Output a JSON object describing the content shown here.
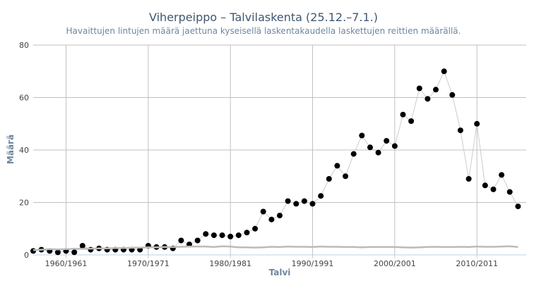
{
  "chart_data": {
    "type": "line",
    "title": "Viherpeippo – Talvilaskenta (25.12.–7.1.)",
    "subtitle": "Havaittujen lintujen määrä jaettuna kyseisellä laskentakaudella laskettujen reittien määrällä.",
    "xlabel": "Talvi",
    "ylabel": "Määrä",
    "ylim": [
      0,
      80
    ],
    "yticks": [
      "0",
      "20",
      "40",
      "60",
      "80"
    ],
    "xlim": [
      1956,
      2016
    ],
    "xticks": [
      {
        "x": 1960,
        "label": "1960/1961"
      },
      {
        "x": 1970,
        "label": "1970/1971"
      },
      {
        "x": 1980,
        "label": "1980/1981"
      },
      {
        "x": 1990,
        "label": "1990/1991"
      },
      {
        "x": 2000,
        "label": "2000/2001"
      },
      {
        "x": 2010,
        "label": "2010/2011"
      }
    ],
    "grid": true,
    "legend": "none",
    "series": [
      {
        "color": "#000000",
        "line_color": "#cccccc",
        "x": [
          1956,
          1957,
          1958,
          1959,
          1960,
          1961,
          1962,
          1963,
          1964,
          1965,
          1966,
          1967,
          1968,
          1969,
          1970,
          1971,
          1972,
          1973,
          1974,
          1975,
          1976,
          1977,
          1978,
          1979,
          1980,
          1981,
          1982,
          1983,
          1984,
          1985,
          1986,
          1987,
          1988,
          1989,
          1990,
          1991,
          1992,
          1993,
          1994,
          1995,
          1996,
          1997,
          1998,
          1999,
          2000,
          2001,
          2002,
          2003,
          2004,
          2005,
          2006,
          2007,
          2008,
          2009,
          2010,
          2011,
          2012,
          2013,
          2014,
          2015
        ],
        "values": [
          1.5,
          2.0,
          1.5,
          1.0,
          1.5,
          1.0,
          3.5,
          2.0,
          2.5,
          2.0,
          2.0,
          2.0,
          2.0,
          2.0,
          3.5,
          3.0,
          3.0,
          2.5,
          5.5,
          4.0,
          5.5,
          8.0,
          7.5,
          7.5,
          7.0,
          7.5,
          8.5,
          10.0,
          16.5,
          13.5,
          15.0,
          20.5,
          19.5,
          20.5,
          19.5,
          22.5,
          29.0,
          34.0,
          30.0,
          38.5,
          45.5,
          41.0,
          39.0,
          43.5,
          41.5,
          53.5,
          51.0,
          63.5,
          59.5,
          63.0,
          70.0,
          61.0,
          47.5,
          29.0,
          50.0,
          26.5,
          25.0,
          30.5,
          24.0,
          18.5
        ]
      },
      {
        "color": "#bbbbbb",
        "x": [
          1956,
          1957,
          1958,
          1959,
          1960,
          1961,
          1962,
          1963,
          1964,
          1965,
          1966,
          1967,
          1968,
          1969,
          1970,
          1971,
          1972,
          1973,
          1974,
          1975,
          1976,
          1977,
          1978,
          1979,
          1980,
          1981,
          1982,
          1983,
          1984,
          1985,
          1986,
          1987,
          1988,
          1989,
          1990,
          1991,
          1992,
          1993,
          1994,
          1995,
          1996,
          1997,
          1998,
          1999,
          2000,
          2001,
          2002,
          2003,
          2004,
          2005,
          2006,
          2007,
          2008,
          2009,
          2010,
          2011,
          2012,
          2013,
          2014,
          2015
        ],
        "values": [
          1.8,
          2.0,
          2.2,
          2.1,
          2.2,
          2.3,
          2.3,
          2.4,
          2.5,
          2.5,
          2.6,
          2.6,
          2.7,
          2.8,
          2.9,
          2.9,
          3.0,
          3.0,
          3.1,
          3.2,
          3.2,
          3.2,
          3.0,
          3.3,
          3.2,
          2.9,
          2.9,
          2.8,
          2.9,
          3.1,
          3.0,
          3.2,
          3.1,
          3.1,
          3.0,
          3.2,
          3.1,
          3.1,
          3.0,
          3.0,
          2.9,
          3.0,
          3.0,
          3.0,
          3.0,
          2.9,
          2.8,
          2.9,
          3.0,
          3.1,
          3.0,
          3.0,
          3.1,
          3.0,
          3.2,
          3.1,
          3.1,
          3.2,
          3.3,
          3.0
        ]
      }
    ]
  }
}
